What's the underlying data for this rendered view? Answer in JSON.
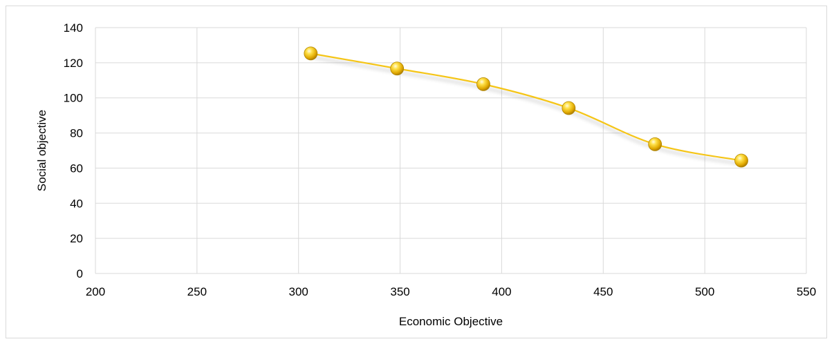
{
  "chart_data": {
    "type": "scatter",
    "title": "",
    "xlabel": "Economic Objective",
    "ylabel": "Social objective",
    "xlim": [
      200,
      550
    ],
    "ylim": [
      0,
      140
    ],
    "xticks": [
      200,
      250,
      300,
      350,
      400,
      450,
      500,
      550
    ],
    "yticks": [
      0,
      20,
      40,
      60,
      80,
      100,
      120,
      140
    ],
    "grid": true,
    "legend": "none",
    "line_style": "smooth",
    "series": [
      {
        "color": "#f5c518",
        "x": [
          306,
          348.5,
          391,
          433,
          475.5,
          518
        ],
        "y": [
          125.3,
          116.7,
          107.8,
          94.2,
          73.6,
          64.3
        ]
      }
    ]
  }
}
